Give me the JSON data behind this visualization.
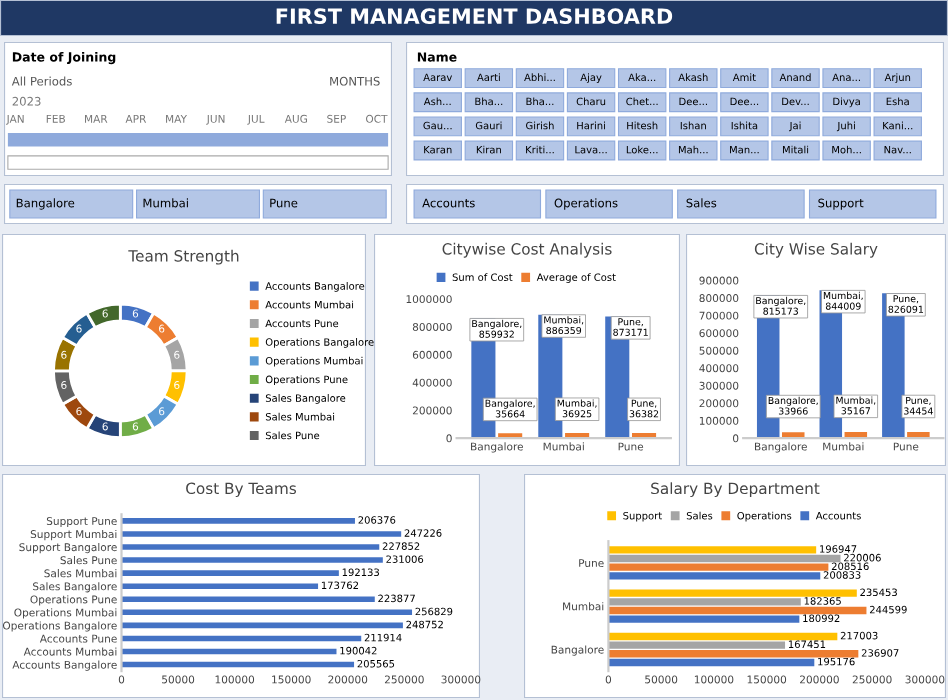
{
  "chart_data": [
    {
      "type": "other",
      "title": "FIRST MANAGEMENT DASHBOARD"
    },
    {
      "type": "other",
      "title": "Date of Joining",
      "annotations": [
        "All Periods",
        "MONTHS",
        "2023",
        "JAN",
        "FEB",
        "MAR",
        "APR",
        "MAY",
        "JUN",
        "JUL",
        "AUG",
        "SEP",
        "OCT"
      ]
    },
    {
      "type": "other",
      "title": "Name",
      "annotations": [
        "Aarav",
        "Aarti",
        "Abhi...",
        "Ajay",
        "Aka...",
        "Akash",
        "Amit",
        "Anand",
        "Ana...",
        "Arjun",
        "Ash...",
        "Bha...",
        "Bha...",
        "Charu",
        "Chet...",
        "Dee...",
        "Dee...",
        "Dev...",
        "Divya",
        "Esha",
        "Gau...",
        "Gauri",
        "Girish",
        "Harini",
        "Hitesh",
        "Ishan",
        "Ishita",
        "Jai",
        "Juhi",
        "Kani...",
        "Karan",
        "Kiran",
        "Kriti...",
        "Lava...",
        "Loke...",
        "Mah...",
        "Man...",
        "Mitali",
        "Moh...",
        "Nav..."
      ]
    },
    {
      "type": "other",
      "annotations": [
        "Bangalore",
        "Mumbai",
        "Pune"
      ]
    },
    {
      "type": "other",
      "annotations": [
        "Accounts",
        "Operations",
        "Sales",
        "Support"
      ]
    },
    {
      "type": "donut",
      "title": "Team Strength",
      "legend": "right",
      "data_labels": true,
      "categories": [
        "Accounts Bangalore",
        "Accounts Mumbai",
        "Accounts Pune",
        "Operations Bangalore",
        "Operations Mumbai",
        "Operations Pune",
        "Sales Bangalore",
        "Sales Mumbai",
        "Sales Pune",
        null,
        null,
        null
      ],
      "values": [
        6,
        6,
        6,
        6,
        6,
        6,
        6,
        6,
        6,
        6,
        6,
        6
      ],
      "colors": [
        "#4472c4",
        "#ed7d31",
        "#a5a5a5",
        "#ffc000",
        "#5b9bd5",
        "#70ad47",
        "#264478",
        "#9e480e",
        "#636363",
        "#997300",
        "#255e91",
        "#43682b"
      ]
    },
    {
      "type": "bar",
      "title": "Citywise Cost Analysis",
      "legend": "top",
      "categories": [
        "Bangalore",
        "Mumbai",
        "Pune"
      ],
      "ylim": [
        0,
        1000000
      ],
      "yticks": [
        0,
        200000,
        400000,
        600000,
        800000,
        1000000
      ],
      "series": [
        {
          "name": "Sum of Cost",
          "color": "#4472c4",
          "values": [
            859932,
            886359,
            873171
          ],
          "value_labels": [
            "Bangalore, 859932",
            "Mumbai, 886359",
            "Pune, 873171"
          ]
        },
        {
          "name": "Average of Cost",
          "color": "#ed7d31",
          "values": [
            35664,
            36925,
            36382
          ],
          "value_labels": [
            "Bangalore, 35664",
            "Mumbai, 36925",
            "Pune, 36382"
          ]
        }
      ]
    },
    {
      "type": "bar",
      "title": "City Wise Salary",
      "categories": [
        "Bangalore",
        "Mumbai",
        "Pune"
      ],
      "ylim": [
        0,
        900000
      ],
      "yticks": [
        0,
        100000,
        200000,
        300000,
        400000,
        500000,
        600000,
        700000,
        800000,
        900000
      ],
      "series": [
        {
          "color": "#4472c4",
          "values": [
            815173,
            844009,
            826091
          ],
          "value_labels": [
            "Bangalore, 815173",
            "Mumbai, 844009",
            "Pune, 826091"
          ]
        },
        {
          "color": "#ed7d31",
          "values": [
            33966,
            35167,
            34454
          ],
          "value_labels": [
            "Bangalore, 33966",
            "Mumbai, 35167",
            "Pune, 34454"
          ]
        }
      ]
    },
    {
      "type": "bar",
      "title": "Cost By Teams",
      "orientation": "horizontal",
      "data_labels": true,
      "categories": [
        "Support Pune",
        "Support Mumbai",
        "Support Bangalore",
        "Sales Pune",
        "Sales Mumbai",
        "Sales Bangalore",
        "Operations Pune",
        "Operations Mumbai",
        "Operations Bangalore",
        "Accounts Pune",
        "Accounts Mumbai",
        "Accounts Bangalore"
      ],
      "xlim": [
        0,
        300000
      ],
      "xticks": [
        0,
        50000,
        100000,
        150000,
        200000,
        250000,
        300000
      ],
      "series": [
        {
          "color": "#4472c4",
          "values": [
            206376,
            247226,
            227852,
            231006,
            192133,
            173762,
            223877,
            256829,
            248752,
            211914,
            190042,
            205565
          ]
        }
      ]
    },
    {
      "type": "bar",
      "title": "Salary By Department",
      "orientation": "horizontal",
      "data_labels": true,
      "legend": "top",
      "categories": [
        "Pune",
        "Mumbai",
        "Bangalore"
      ],
      "xlim": [
        0,
        300000
      ],
      "xticks": [
        0,
        50000,
        100000,
        150000,
        200000,
        250000,
        300000
      ],
      "series": [
        {
          "name": "Support",
          "color": "#ffc000",
          "values": [
            196947,
            235453,
            217003
          ]
        },
        {
          "name": "Sales",
          "color": "#a5a5a5",
          "values": [
            220006,
            182365,
            167451
          ]
        },
        {
          "name": "Operations",
          "color": "#ed7d31",
          "values": [
            208516,
            244599,
            236907
          ]
        },
        {
          "name": "Accounts",
          "color": "#4472c4",
          "values": [
            200833,
            180992,
            195176
          ]
        }
      ]
    }
  ]
}
